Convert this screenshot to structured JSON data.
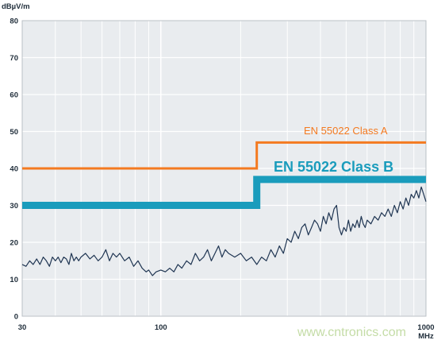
{
  "watermark": "www.cntronics.com",
  "chart_data": {
    "type": "line",
    "title": "",
    "ylabel": "dBµV/m",
    "xlabel": "MHz",
    "x_scale": "log",
    "xlim": [
      30,
      1000
    ],
    "ylim": [
      0,
      80
    ],
    "x_ticks": [
      30,
      100,
      1000
    ],
    "x_tick_labels": [
      "30",
      "100",
      "1000"
    ],
    "y_ticks": [
      0,
      10,
      20,
      30,
      40,
      50,
      60,
      70,
      80
    ],
    "grid": true,
    "colors": {
      "class_a": "#f47a20",
      "class_b": "#1a9cbc",
      "measurement": "#1f3552",
      "panel": "#e9ecef"
    },
    "series": [
      {
        "name": "EN 55022 Class A",
        "style": "step",
        "x": [
          30,
          230,
          230,
          1000
        ],
        "y": [
          40,
          40,
          47,
          47
        ]
      },
      {
        "name": "EN 55022 Class B",
        "style": "step",
        "x": [
          30,
          230,
          230,
          1000
        ],
        "y": [
          30,
          30,
          37,
          37
        ]
      },
      {
        "name": "",
        "style": "line",
        "x": [
          30,
          31,
          32,
          33,
          34,
          35,
          36,
          37,
          38,
          39,
          40,
          41,
          42,
          43,
          44,
          45,
          46,
          47,
          48,
          49,
          50,
          52,
          54,
          56,
          58,
          60,
          62,
          64,
          66,
          68,
          70,
          73,
          76,
          79,
          82,
          85,
          88,
          90,
          93,
          96,
          100,
          104,
          108,
          112,
          116,
          120,
          125,
          130,
          135,
          140,
          145,
          150,
          155,
          160,
          165,
          170,
          175,
          180,
          190,
          200,
          210,
          220,
          230,
          240,
          250,
          260,
          270,
          280,
          290,
          300,
          310,
          320,
          330,
          340,
          350,
          360,
          370,
          380,
          390,
          400,
          410,
          420,
          430,
          440,
          450,
          460,
          470,
          480,
          490,
          500,
          510,
          520,
          530,
          540,
          550,
          560,
          570,
          580,
          590,
          600,
          620,
          640,
          660,
          680,
          700,
          720,
          740,
          760,
          780,
          800,
          820,
          840,
          860,
          880,
          900,
          920,
          940,
          960,
          980,
          1000
        ],
        "y": [
          14,
          13.5,
          15,
          14,
          15.5,
          14,
          16,
          15,
          13.5,
          16,
          15,
          16,
          14.5,
          16,
          15.5,
          14,
          17,
          15,
          16,
          15,
          16,
          17,
          15.5,
          16.5,
          15,
          16,
          18,
          15,
          17,
          16,
          17,
          15,
          16,
          13.5,
          15,
          13,
          12,
          12.5,
          11,
          12,
          12.5,
          12,
          13,
          12,
          14,
          13,
          15,
          14,
          17,
          15,
          16,
          18,
          15,
          17,
          19,
          16,
          18,
          17,
          16,
          17,
          15,
          16,
          14,
          16,
          15,
          18,
          16,
          19,
          17,
          21,
          20,
          23,
          21,
          24,
          25,
          22,
          24,
          26,
          25,
          23,
          27,
          25,
          28,
          26,
          29,
          30,
          24,
          22,
          24,
          23,
          26,
          23,
          25,
          24,
          26,
          24,
          27,
          25,
          24,
          26,
          25,
          27,
          26,
          28,
          27,
          29,
          27,
          30,
          28,
          31,
          29,
          32,
          30,
          33,
          32,
          34,
          32,
          35,
          33,
          31
        ]
      }
    ]
  }
}
